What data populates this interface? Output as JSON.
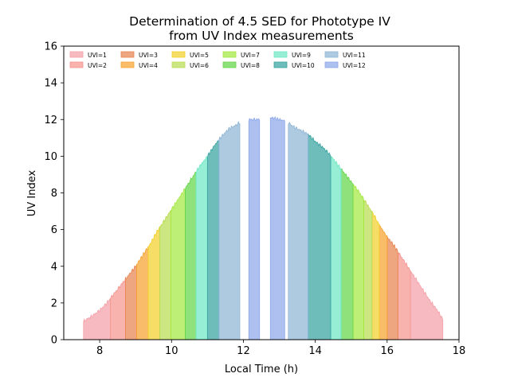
{
  "chart_data": {
    "type": "area",
    "title": "Determination of 4.5 SED for Phototype IV\nfrom UV Index measurements",
    "title_lines": [
      "Determination of 4.5 SED for Phototype IV",
      "from UV Index measurements"
    ],
    "xlabel": "Local Time (h)",
    "ylabel": "UV Index",
    "xlim": [
      7,
      18
    ],
    "ylim": [
      0,
      16
    ],
    "xticks": [
      8,
      10,
      12,
      14,
      16,
      18
    ],
    "yticks": [
      0,
      2,
      4,
      6,
      8,
      10,
      12,
      14,
      16
    ],
    "legend_location": "top",
    "grid": false,
    "uv_profile": {
      "x": [
        7.55,
        7.8,
        8.0,
        8.2,
        8.4,
        8.6,
        8.8,
        9.0,
        9.2,
        9.4,
        9.6,
        9.8,
        10.0,
        10.2,
        10.4,
        10.6,
        10.8,
        11.0,
        11.2,
        11.4,
        11.6,
        11.8,
        12.0,
        12.2,
        12.4,
        12.6,
        12.8,
        13.0,
        13.2,
        13.4,
        13.6,
        13.8,
        14.0,
        14.2,
        14.4,
        14.6,
        14.8,
        15.0,
        15.2,
        15.4,
        15.6,
        15.8,
        16.0,
        16.2,
        16.4,
        16.6,
        16.8,
        17.0,
        17.2,
        17.4,
        17.55
      ],
      "y": [
        1.0,
        1.3,
        1.6,
        2.0,
        2.5,
        3.0,
        3.5,
        4.0,
        4.6,
        5.2,
        5.9,
        6.5,
        7.1,
        7.7,
        8.3,
        8.9,
        9.5,
        10.0,
        10.6,
        11.1,
        11.5,
        11.7,
        12.0,
        12.0,
        12.0,
        12.0,
        12.1,
        12.0,
        11.9,
        11.6,
        11.4,
        11.2,
        10.8,
        10.5,
        10.1,
        9.6,
        9.1,
        8.6,
        8.1,
        7.5,
        6.9,
        6.2,
        5.6,
        5.1,
        4.5,
        3.9,
        3.3,
        2.7,
        2.1,
        1.6,
        1.1
      ]
    },
    "series": [
      {
        "name": "UVI=1",
        "color": "#f4a0a8",
        "ranges": [
          [
            7.55,
            8.3
          ],
          [
            16.65,
            17.55
          ]
        ]
      },
      {
        "name": "UVI=2",
        "color": "#f59590",
        "ranges": [
          [
            8.3,
            8.72
          ],
          [
            16.3,
            16.65
          ]
        ]
      },
      {
        "name": "UVI=3",
        "color": "#e8844f",
        "ranges": [
          [
            8.72,
            9.03
          ],
          [
            16.0,
            16.3
          ]
        ]
      },
      {
        "name": "UVI=4",
        "color": "#f7a431",
        "ranges": [
          [
            9.03,
            9.35
          ],
          [
            15.78,
            16.0
          ]
        ]
      },
      {
        "name": "UVI=5",
        "color": "#f3d02a",
        "ranges": [
          [
            9.35,
            9.67
          ],
          [
            15.58,
            15.78
          ]
        ]
      },
      {
        "name": "UVI=6",
        "color": "#b8dc50",
        "ranges": [
          [
            9.67,
            9.98
          ],
          [
            15.35,
            15.58
          ]
        ]
      },
      {
        "name": "UVI=7",
        "color": "#a4e840",
        "ranges": [
          [
            9.98,
            10.38
          ],
          [
            15.05,
            15.35
          ]
        ]
      },
      {
        "name": "UVI=8",
        "color": "#64d548",
        "ranges": [
          [
            10.38,
            10.68
          ],
          [
            14.72,
            15.05
          ]
        ]
      },
      {
        "name": "UVI=9",
        "color": "#6ee8c4",
        "ranges": [
          [
            10.68,
            11.0
          ],
          [
            14.43,
            14.72
          ]
        ]
      },
      {
        "name": "UVI=10",
        "color": "#36a3a0",
        "ranges": [
          [
            11.0,
            11.32
          ],
          [
            13.8,
            14.43
          ]
        ]
      },
      {
        "name": "UVI=11",
        "color": "#8fb5d5",
        "ranges": [
          [
            11.32,
            11.9
          ],
          [
            13.25,
            13.8
          ]
        ]
      },
      {
        "name": "UVI=12",
        "color": "#8ea8ea",
        "ranges": [
          [
            12.15,
            12.45
          ],
          [
            12.75,
            13.15
          ]
        ]
      }
    ]
  }
}
